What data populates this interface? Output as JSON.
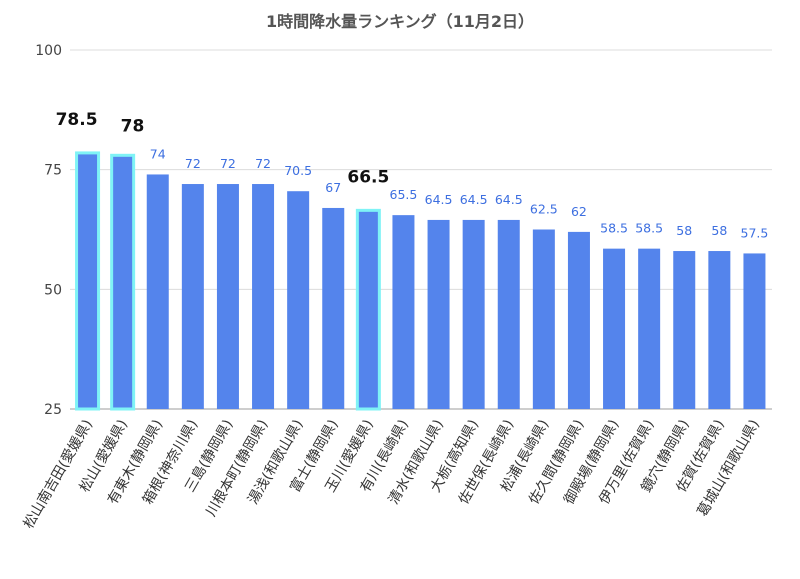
{
  "chart_data": {
    "type": "bar",
    "title": "1時間降水量ランキング（11月2日）",
    "xlabel": "",
    "ylabel": "",
    "ylim": [
      25,
      100
    ],
    "yticks": [
      25,
      50,
      75,
      100
    ],
    "grid": true,
    "categories": [
      "松山南吉田(愛媛県)",
      "松山(愛媛県)",
      "有東木(静岡県)",
      "箱根(神奈川県)",
      "三島(静岡県)",
      "川根本町(静岡県)",
      "湯浅(和歌山県)",
      "富士(静岡県)",
      "玉川(愛媛県)",
      "有川(長崎県)",
      "清水(和歌山県)",
      "大栃(高知県)",
      "佐世保(長崎県)",
      "松浦(長崎県)",
      "佐久間(静岡県)",
      "御殿場(静岡県)",
      "伊万里(佐賀県)",
      "鏡穴(静岡県)",
      "佐賀(佐賀県)",
      "葛城山(和歌山県)"
    ],
    "values": [
      78.5,
      78,
      74,
      72,
      72,
      72,
      70.5,
      67,
      66.5,
      65.5,
      64.5,
      64.5,
      64.5,
      62.5,
      62,
      58.5,
      58.5,
      58,
      58,
      57.5
    ],
    "labels": [
      "78.5",
      "78",
      "74",
      "72",
      "72",
      "72",
      "70.5",
      "67",
      "66.5",
      "65.5",
      "64.5",
      "64.5",
      "64.5",
      "62.5",
      "62",
      "58.5",
      "58.5",
      "58",
      "58",
      "57.5"
    ],
    "highlighted": [
      true,
      true,
      false,
      false,
      false,
      false,
      false,
      false,
      true,
      false,
      false,
      false,
      false,
      false,
      false,
      false,
      false,
      false,
      false,
      false
    ]
  },
  "colors": {
    "bar": "#5484ec",
    "highlight_outline": "#7ff3f6",
    "label": "#3d6fe0",
    "label_highlight": "#111111"
  }
}
